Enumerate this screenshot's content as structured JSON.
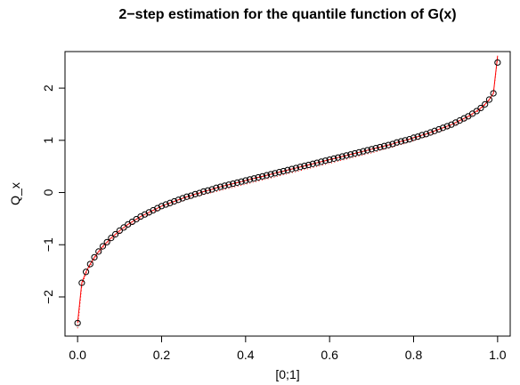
{
  "chart_data": {
    "type": "scatter",
    "title": "2−step estimation for the quantile function of G(x)",
    "xlabel": "[0;1]",
    "ylabel": "Q_x",
    "xlim": [
      -0.03,
      1.03
    ],
    "ylim": [
      -2.75,
      2.7
    ],
    "x_ticks": [
      0.0,
      0.2,
      0.4,
      0.6,
      0.8,
      1.0
    ],
    "x_tick_labels": [
      "0.0",
      "0.2",
      "0.4",
      "0.6",
      "0.8",
      "1.0"
    ],
    "y_ticks": [
      -2,
      -1,
      0,
      1,
      2
    ],
    "y_tick_labels": [
      "−2",
      "−1",
      "0",
      "1",
      "2"
    ],
    "grid": false,
    "legend": "none",
    "series": [
      {
        "style": "open circles",
        "color": "#000000",
        "x": [
          0.0,
          0.01,
          0.02,
          0.03,
          0.04,
          0.05,
          0.06,
          0.07,
          0.08,
          0.09,
          0.1,
          0.11,
          0.12,
          0.13,
          0.14,
          0.15,
          0.16,
          0.17,
          0.18,
          0.19,
          0.2,
          0.21,
          0.22,
          0.23,
          0.24,
          0.25,
          0.26,
          0.27,
          0.28,
          0.29,
          0.3,
          0.31,
          0.32,
          0.33,
          0.34,
          0.35,
          0.36,
          0.37,
          0.38,
          0.39,
          0.4,
          0.41,
          0.42,
          0.43,
          0.44,
          0.45,
          0.46,
          0.47,
          0.48,
          0.49,
          0.5,
          0.51,
          0.52,
          0.53,
          0.54,
          0.55,
          0.56,
          0.57,
          0.58,
          0.59,
          0.6,
          0.61,
          0.62,
          0.63,
          0.64,
          0.65,
          0.66,
          0.67,
          0.68,
          0.69,
          0.7,
          0.71,
          0.72,
          0.73,
          0.74,
          0.75,
          0.76,
          0.77,
          0.78,
          0.79,
          0.8,
          0.81,
          0.82,
          0.83,
          0.84,
          0.85,
          0.86,
          0.87,
          0.88,
          0.89,
          0.9,
          0.91,
          0.92,
          0.93,
          0.94,
          0.95,
          0.96,
          0.97,
          0.98,
          0.99,
          1.0
        ],
        "y": [
          -2.5,
          -1.73,
          -1.52,
          -1.37,
          -1.24,
          -1.13,
          -1.03,
          -0.95,
          -0.87,
          -0.8,
          -0.73,
          -0.67,
          -0.61,
          -0.56,
          -0.51,
          -0.46,
          -0.42,
          -0.38,
          -0.34,
          -0.3,
          -0.26,
          -0.23,
          -0.2,
          -0.17,
          -0.14,
          -0.11,
          -0.08,
          -0.06,
          -0.03,
          -0.01,
          0.02,
          0.04,
          0.06,
          0.09,
          0.11,
          0.13,
          0.15,
          0.17,
          0.19,
          0.21,
          0.23,
          0.25,
          0.27,
          0.29,
          0.31,
          0.33,
          0.35,
          0.37,
          0.39,
          0.41,
          0.43,
          0.45,
          0.47,
          0.49,
          0.51,
          0.53,
          0.55,
          0.57,
          0.59,
          0.61,
          0.63,
          0.65,
          0.67,
          0.69,
          0.71,
          0.73,
          0.75,
          0.77,
          0.79,
          0.81,
          0.83,
          0.85,
          0.87,
          0.89,
          0.91,
          0.93,
          0.96,
          0.98,
          1.0,
          1.02,
          1.05,
          1.07,
          1.1,
          1.12,
          1.15,
          1.18,
          1.21,
          1.24,
          1.27,
          1.3,
          1.34,
          1.38,
          1.42,
          1.46,
          1.51,
          1.56,
          1.62,
          1.69,
          1.78,
          1.9,
          2.49
        ]
      },
      {
        "style": "solid line",
        "color": "#ff0000",
        "x": [
          0.0,
          0.01,
          0.02,
          0.03,
          0.04,
          0.05,
          0.06,
          0.07,
          0.08,
          0.09,
          0.1,
          0.11,
          0.12,
          0.13,
          0.14,
          0.15,
          0.16,
          0.17,
          0.18,
          0.19,
          0.2,
          0.21,
          0.22,
          0.23,
          0.24,
          0.25,
          0.26,
          0.27,
          0.28,
          0.29,
          0.3,
          0.31,
          0.32,
          0.33,
          0.34,
          0.35,
          0.36,
          0.37,
          0.38,
          0.39,
          0.4,
          0.41,
          0.42,
          0.43,
          0.44,
          0.45,
          0.46,
          0.47,
          0.48,
          0.49,
          0.5,
          0.51,
          0.52,
          0.53,
          0.54,
          0.55,
          0.56,
          0.57,
          0.58,
          0.59,
          0.6,
          0.61,
          0.62,
          0.63,
          0.64,
          0.65,
          0.66,
          0.67,
          0.68,
          0.69,
          0.7,
          0.71,
          0.72,
          0.73,
          0.74,
          0.75,
          0.76,
          0.77,
          0.78,
          0.79,
          0.8,
          0.81,
          0.82,
          0.83,
          0.84,
          0.85,
          0.86,
          0.87,
          0.88,
          0.89,
          0.9,
          0.91,
          0.92,
          0.93,
          0.94,
          0.95,
          0.96,
          0.97,
          0.98,
          0.99,
          1.0
        ],
        "y": [
          -2.5,
          -1.73,
          -1.52,
          -1.37,
          -1.24,
          -1.13,
          -1.03,
          -0.95,
          -0.87,
          -0.8,
          -0.73,
          -0.67,
          -0.61,
          -0.56,
          -0.51,
          -0.46,
          -0.42,
          -0.38,
          -0.34,
          -0.3,
          -0.26,
          -0.23,
          -0.2,
          -0.17,
          -0.14,
          -0.11,
          -0.08,
          -0.06,
          -0.03,
          -0.01,
          0.02,
          0.04,
          0.06,
          0.09,
          0.11,
          0.13,
          0.15,
          0.17,
          0.19,
          0.21,
          0.23,
          0.25,
          0.27,
          0.29,
          0.31,
          0.33,
          0.35,
          0.37,
          0.39,
          0.41,
          0.43,
          0.45,
          0.47,
          0.49,
          0.51,
          0.53,
          0.55,
          0.57,
          0.59,
          0.61,
          0.63,
          0.65,
          0.67,
          0.69,
          0.71,
          0.73,
          0.75,
          0.77,
          0.79,
          0.81,
          0.83,
          0.85,
          0.87,
          0.89,
          0.91,
          0.93,
          0.96,
          0.98,
          1.0,
          1.02,
          1.05,
          1.07,
          1.1,
          1.12,
          1.15,
          1.18,
          1.21,
          1.24,
          1.27,
          1.3,
          1.34,
          1.38,
          1.42,
          1.46,
          1.51,
          1.56,
          1.62,
          1.69,
          1.78,
          1.9,
          2.62
        ]
      },
      {
        "style": "dotted line",
        "color": "#ff0000",
        "x": [
          0.0,
          0.01,
          0.02,
          0.03,
          0.04,
          0.05,
          0.06,
          0.07,
          0.08,
          0.09,
          0.1,
          0.11,
          0.12,
          0.13,
          0.14,
          0.15,
          0.16,
          0.17,
          0.18,
          0.19,
          0.2,
          0.21,
          0.22,
          0.23,
          0.24,
          0.25,
          0.26,
          0.27,
          0.28,
          0.29,
          0.3,
          0.31,
          0.32,
          0.33,
          0.34,
          0.35,
          0.36,
          0.37,
          0.38,
          0.39,
          0.4,
          0.41,
          0.42,
          0.43,
          0.44,
          0.45,
          0.46,
          0.47,
          0.48,
          0.49,
          0.5,
          0.51,
          0.52,
          0.53,
          0.54,
          0.55,
          0.56,
          0.57,
          0.58,
          0.59,
          0.6,
          0.61,
          0.62,
          0.63,
          0.64,
          0.65,
          0.66,
          0.67,
          0.68,
          0.69,
          0.7,
          0.71,
          0.72,
          0.73,
          0.74,
          0.75,
          0.76,
          0.77,
          0.78,
          0.79,
          0.8,
          0.81,
          0.82,
          0.83,
          0.84,
          0.85,
          0.86,
          0.87,
          0.88,
          0.89,
          0.9,
          0.91,
          0.92,
          0.93,
          0.94,
          0.95,
          0.96,
          0.97,
          0.98,
          0.99,
          1.0
        ],
        "y": [
          -2.6,
          -1.78,
          -1.56,
          -1.41,
          -1.28,
          -1.17,
          -1.07,
          -0.99,
          -0.91,
          -0.84,
          -0.77,
          -0.71,
          -0.65,
          -0.6,
          -0.55,
          -0.5,
          -0.46,
          -0.42,
          -0.38,
          -0.34,
          -0.31,
          -0.28,
          -0.25,
          -0.22,
          -0.19,
          -0.16,
          -0.13,
          -0.11,
          -0.08,
          -0.06,
          -0.04,
          -0.02,
          0.0,
          0.02,
          0.04,
          0.06,
          0.08,
          0.1,
          0.12,
          0.14,
          0.16,
          0.18,
          0.2,
          0.22,
          0.24,
          0.26,
          0.28,
          0.3,
          0.32,
          0.34,
          0.36,
          0.38,
          0.4,
          0.42,
          0.44,
          0.46,
          0.48,
          0.5,
          0.52,
          0.54,
          0.56,
          0.58,
          0.6,
          0.62,
          0.64,
          0.66,
          0.68,
          0.7,
          0.72,
          0.74,
          0.76,
          0.78,
          0.81,
          0.83,
          0.85,
          0.87,
          0.9,
          0.92,
          0.94,
          0.97,
          0.99,
          1.02,
          1.05,
          1.07,
          1.1,
          1.13,
          1.16,
          1.19,
          1.23,
          1.26,
          1.3,
          1.34,
          1.38,
          1.43,
          1.48,
          1.54,
          1.6,
          1.68,
          1.77,
          1.9,
          2.58
        ]
      }
    ]
  }
}
